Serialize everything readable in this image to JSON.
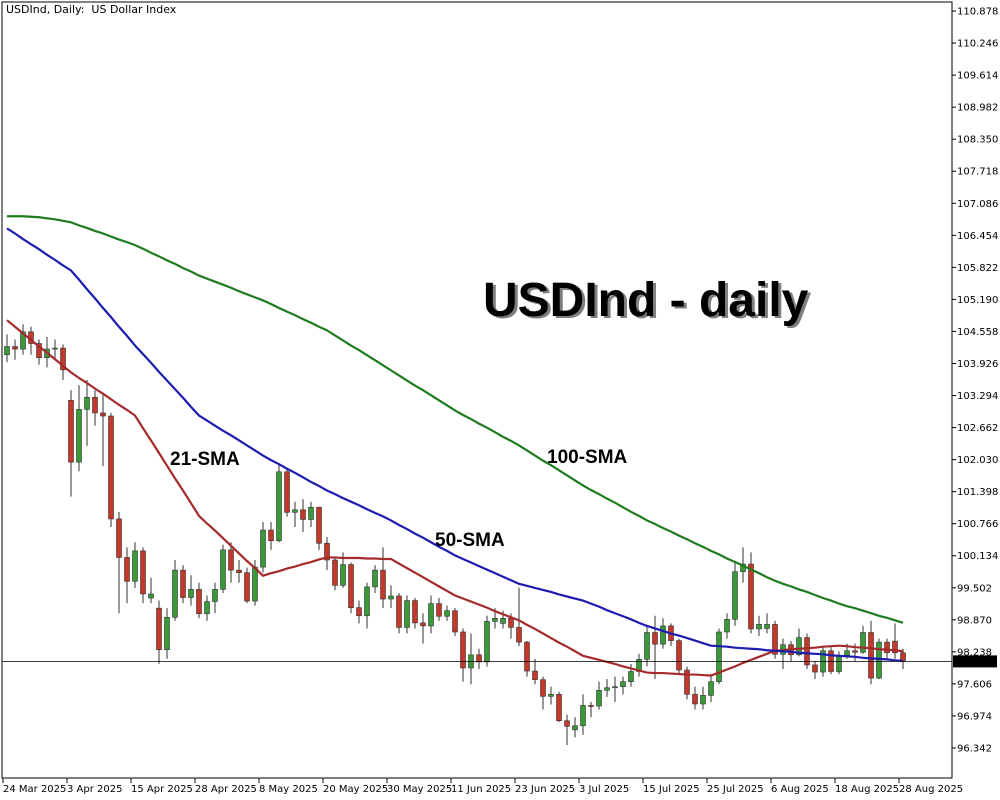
{
  "chart_data": {
    "type": "candlestick",
    "title": "USDInd, Daily:  US Dollar Index",
    "heading": "USDInd - daily",
    "categories": [
      "24 Mar 2025",
      null,
      null,
      null,
      null,
      null,
      null,
      null,
      "3 Apr 2025",
      null,
      null,
      null,
      null,
      null,
      null,
      null,
      "15 Apr 2025",
      null,
      null,
      null,
      null,
      null,
      null,
      null,
      "28 Apr 2025",
      null,
      null,
      null,
      null,
      null,
      null,
      null,
      "8 May 2025",
      null,
      null,
      null,
      null,
      null,
      null,
      null,
      "20 May 2025",
      null,
      null,
      null,
      null,
      null,
      null,
      null,
      "30 May 2025",
      null,
      null,
      null,
      null,
      null,
      null,
      null,
      "11 Jun 2025",
      null,
      null,
      null,
      null,
      null,
      null,
      null,
      "23 Jun 2025",
      null,
      null,
      null,
      null,
      null,
      null,
      null,
      "3 Jul 2025",
      null,
      null,
      null,
      null,
      null,
      null,
      null,
      "15 Jul 2025",
      null,
      null,
      null,
      null,
      null,
      null,
      null,
      "25 Jul 2025",
      null,
      null,
      null,
      null,
      null,
      null,
      null,
      "6 Aug 2025",
      null,
      null,
      null,
      null,
      null,
      null,
      null,
      "18 Aug 2025",
      null,
      null,
      null,
      null,
      null,
      null,
      null,
      "28 Aug 2025"
    ],
    "open": [
      104.1,
      104.26,
      104.21,
      104.55,
      104.32,
      104.04,
      104.21,
      104.23,
      103.2,
      101.98,
      103.02,
      103.26,
      102.95,
      102.89,
      100.86,
      100.1,
      99.63,
      100.23,
      99.3,
      99.1,
      98.28,
      98.92,
      99.85,
      99.31,
      99.47,
      98.99,
      99.23,
      99.47,
      100.25,
      99.85,
      99.8,
      99.24,
      99.91,
      100.64,
      100.43,
      101.79,
      100.99,
      101.04,
      100.85,
      101.09,
      100.38,
      100.05,
      99.55,
      99.96,
      99.11,
      98.95,
      99.52,
      99.85,
      99.28,
      99.34,
      98.72,
      99.25,
      98.81,
      98.75,
      99.19,
      98.94,
      99.05,
      98.63,
      97.92,
      98.18,
      98.04,
      98.84,
      98.8,
      98.9,
      98.72,
      98.43,
      97.86,
      97.69,
      97.36,
      97.4,
      96.88,
      96.7,
      96.78,
      97.18,
      97.17,
      97.48,
      97.53,
      97.55,
      97.65,
      97.85,
      98.09,
      98.62,
      98.39,
      98.75,
      98.46,
      97.88,
      97.4,
      97.21,
      97.38,
      97.65,
      98.63,
      98.88,
      99.82,
      99.97,
      98.69,
      98.7,
      98.78,
      98.19,
      98.38,
      98.18,
      98.52,
      97.98,
      97.84,
      98.26,
      97.85,
      98.17,
      98.26,
      98.23,
      98.62,
      97.72,
      98.43,
      98.45,
      98.22
    ],
    "high": [
      104.5,
      104.4,
      104.7,
      104.65,
      104.4,
      104.45,
      104.4,
      104.3,
      103.4,
      103.5,
      103.6,
      103.4,
      103.3,
      102.95,
      101.0,
      100.3,
      100.4,
      100.3,
      99.7,
      99.25,
      99.1,
      100.05,
      99.95,
      99.75,
      99.6,
      99.35,
      99.6,
      100.35,
      100.4,
      100.05,
      99.9,
      100.05,
      100.8,
      100.8,
      101.95,
      101.85,
      101.2,
      101.25,
      101.2,
      101.1,
      100.5,
      100.1,
      100.2,
      100.0,
      99.25,
      99.6,
      99.95,
      100.3,
      99.55,
      99.4,
      99.35,
      99.3,
      99.0,
      99.35,
      99.3,
      99.15,
      99.1,
      98.7,
      98.6,
      98.3,
      98.95,
      99.1,
      99.05,
      99.0,
      99.5,
      98.45,
      98.1,
      97.75,
      97.55,
      97.45,
      97.0,
      96.95,
      97.4,
      97.25,
      97.65,
      97.7,
      97.75,
      97.75,
      98.0,
      98.2,
      98.75,
      98.95,
      98.9,
      98.8,
      98.5,
      97.95,
      97.55,
      97.55,
      97.8,
      98.7,
      99.0,
      100.0,
      100.3,
      100.2,
      98.95,
      99.0,
      98.85,
      98.5,
      98.45,
      98.7,
      98.6,
      98.05,
      98.35,
      98.35,
      98.25,
      98.4,
      98.4,
      98.75,
      98.85,
      98.5,
      98.5,
      98.8,
      98.3
    ],
    "low": [
      103.95,
      104.0,
      104.1,
      104.1,
      103.9,
      103.85,
      104.0,
      103.6,
      101.3,
      101.8,
      102.3,
      102.7,
      101.9,
      100.7,
      99.0,
      99.2,
      99.5,
      99.2,
      99.2,
      98.0,
      98.1,
      98.85,
      99.2,
      99.15,
      98.9,
      98.85,
      99.0,
      99.4,
      99.6,
      99.6,
      99.2,
      99.15,
      99.8,
      100.25,
      100.4,
      100.9,
      100.7,
      100.6,
      100.7,
      100.25,
      99.85,
      99.45,
      99.5,
      99.0,
      98.8,
      98.7,
      99.4,
      99.1,
      99.1,
      98.6,
      98.6,
      98.7,
      98.4,
      98.6,
      98.85,
      98.85,
      98.55,
      97.65,
      97.6,
      97.9,
      97.95,
      98.7,
      98.7,
      98.5,
      98.35,
      97.75,
      97.6,
      97.1,
      97.2,
      96.85,
      96.4,
      96.55,
      96.6,
      96.95,
      97.1,
      97.35,
      97.25,
      97.4,
      97.55,
      97.75,
      97.95,
      97.7,
      98.3,
      98.35,
      97.8,
      97.3,
      97.1,
      97.1,
      97.25,
      97.6,
      98.5,
      98.75,
      99.6,
      98.6,
      98.55,
      98.6,
      98.1,
      97.9,
      98.05,
      98.15,
      97.9,
      97.7,
      97.75,
      97.8,
      97.8,
      98.1,
      98.05,
      98.2,
      97.6,
      97.7,
      98.1,
      98.1,
      97.9
    ],
    "close": [
      104.26,
      104.21,
      104.55,
      104.32,
      104.04,
      104.21,
      104.23,
      103.8,
      101.98,
      103.02,
      103.26,
      102.95,
      102.89,
      100.86,
      100.1,
      99.63,
      100.23,
      99.38,
      99.38,
      98.28,
      98.92,
      99.85,
      99.31,
      99.47,
      98.99,
      99.23,
      99.47,
      100.25,
      99.85,
      99.8,
      99.24,
      99.91,
      100.64,
      100.43,
      101.79,
      100.99,
      101.04,
      100.85,
      101.09,
      100.38,
      100.05,
      99.55,
      99.96,
      99.11,
      98.95,
      99.52,
      99.85,
      99.28,
      99.34,
      98.72,
      99.25,
      98.81,
      98.75,
      99.19,
      98.94,
      99.05,
      98.63,
      97.92,
      98.18,
      98.04,
      98.84,
      98.9,
      98.9,
      98.72,
      98.43,
      97.86,
      97.69,
      97.36,
      97.4,
      96.88,
      96.77,
      96.78,
      97.18,
      97.17,
      97.48,
      97.53,
      97.55,
      97.65,
      97.85,
      98.09,
      98.62,
      98.39,
      98.75,
      98.46,
      97.88,
      97.4,
      97.21,
      97.38,
      97.65,
      98.63,
      98.88,
      99.82,
      99.97,
      98.69,
      98.78,
      98.78,
      98.19,
      98.38,
      98.18,
      98.52,
      97.98,
      97.84,
      98.26,
      97.85,
      98.17,
      98.26,
      98.23,
      98.62,
      97.72,
      98.43,
      98.22,
      98.22,
      98.05
    ],
    "up_color": "#3a9a3a",
    "down_color": "#c0392b",
    "series": [
      {
        "name": "21-SMA",
        "color": "#a52a2a",
        "values": [
          104.78,
          104.65,
          104.52,
          104.39,
          104.26,
          104.14,
          104.01,
          103.88,
          103.75,
          103.64,
          103.54,
          103.43,
          103.33,
          103.22,
          103.11,
          103.01,
          102.9,
          102.65,
          102.41,
          102.16,
          101.91,
          101.66,
          101.42,
          101.17,
          100.92,
          100.77,
          100.63,
          100.48,
          100.33,
          100.18,
          100.03,
          99.89,
          99.74,
          99.79,
          99.83,
          99.88,
          99.92,
          99.97,
          100.01,
          100.06,
          100.1,
          100.1,
          100.09,
          100.09,
          100.09,
          100.08,
          100.08,
          100.07,
          100.07,
          99.98,
          99.89,
          99.8,
          99.71,
          99.62,
          99.53,
          99.44,
          99.35,
          99.29,
          99.23,
          99.17,
          99.11,
          99.04,
          98.98,
          98.92,
          98.86,
          98.77,
          98.69,
          98.6,
          98.51,
          98.42,
          98.34,
          98.25,
          98.16,
          98.12,
          98.08,
          98.04,
          98.0,
          97.95,
          97.91,
          97.87,
          97.83,
          97.82,
          97.82,
          97.81,
          97.8,
          97.79,
          97.79,
          97.78,
          97.77,
          97.83,
          97.89,
          97.95,
          98.02,
          98.08,
          98.14,
          98.2,
          98.26,
          98.27,
          98.29,
          98.3,
          98.31,
          98.32,
          98.34,
          98.35,
          98.36,
          98.35,
          98.33,
          98.32,
          98.31,
          98.29,
          98.28,
          98.27,
          98.25
        ]
      },
      {
        "name": "50-SMA",
        "color": "#1c1cb0",
        "values": [
          106.59,
          106.49,
          106.38,
          106.28,
          106.18,
          106.07,
          105.97,
          105.86,
          105.76,
          105.58,
          105.39,
          105.21,
          105.02,
          104.84,
          104.65,
          104.47,
          104.28,
          104.11,
          103.94,
          103.76,
          103.59,
          103.42,
          103.25,
          103.07,
          102.9,
          102.8,
          102.7,
          102.6,
          102.51,
          102.41,
          102.31,
          102.21,
          102.11,
          102.02,
          101.94,
          101.85,
          101.77,
          101.68,
          101.59,
          101.51,
          101.42,
          101.35,
          101.27,
          101.2,
          101.13,
          101.05,
          100.98,
          100.91,
          100.83,
          100.74,
          100.66,
          100.57,
          100.49,
          100.4,
          100.31,
          100.23,
          100.14,
          100.07,
          100.0,
          99.93,
          99.86,
          99.79,
          99.72,
          99.65,
          99.58,
          99.54,
          99.5,
          99.46,
          99.42,
          99.37,
          99.33,
          99.29,
          99.25,
          99.19,
          99.13,
          99.06,
          99.0,
          98.94,
          98.88,
          98.81,
          98.75,
          98.7,
          98.65,
          98.6,
          98.56,
          98.51,
          98.46,
          98.41,
          98.36,
          98.35,
          98.34,
          98.32,
          98.31,
          98.3,
          98.29,
          98.27,
          98.26,
          98.25,
          98.24,
          98.22,
          98.21,
          98.2,
          98.19,
          98.17,
          98.16,
          98.15,
          98.14,
          98.12,
          98.11,
          98.1,
          98.09,
          98.07,
          98.06
        ]
      },
      {
        "name": "100-SMA",
        "color": "#1e7b1e",
        "values": [
          106.83,
          106.83,
          106.83,
          106.82,
          106.81,
          106.79,
          106.77,
          106.74,
          106.71,
          106.65,
          106.6,
          106.54,
          106.49,
          106.43,
          106.37,
          106.32,
          106.26,
          106.19,
          106.11,
          106.04,
          105.96,
          105.89,
          105.81,
          105.74,
          105.66,
          105.6,
          105.54,
          105.48,
          105.42,
          105.35,
          105.29,
          105.23,
          105.17,
          105.1,
          105.02,
          104.95,
          104.88,
          104.8,
          104.73,
          104.65,
          104.58,
          104.48,
          104.38,
          104.28,
          104.19,
          104.09,
          103.99,
          103.89,
          103.79,
          103.69,
          103.59,
          103.49,
          103.4,
          103.3,
          103.2,
          103.1,
          103.0,
          102.91,
          102.83,
          102.74,
          102.66,
          102.57,
          102.48,
          102.4,
          102.31,
          102.21,
          102.11,
          102.01,
          101.92,
          101.82,
          101.72,
          101.62,
          101.52,
          101.43,
          101.35,
          101.26,
          101.18,
          101.09,
          101.0,
          100.92,
          100.83,
          100.76,
          100.68,
          100.61,
          100.53,
          100.46,
          100.38,
          100.31,
          100.23,
          100.16,
          100.08,
          100.01,
          99.94,
          99.86,
          99.79,
          99.71,
          99.64,
          99.58,
          99.53,
          99.47,
          99.42,
          99.36,
          99.3,
          99.25,
          99.19,
          99.14,
          99.1,
          99.05,
          99.0,
          98.95,
          98.91,
          98.86,
          98.81
        ]
      }
    ],
    "current_price": {
      "value": 98.05,
      "label": "98.050"
    },
    "ylim": [
      95.75,
      111.056
    ],
    "yticks": [
      110.878,
      110.246,
      109.614,
      108.982,
      {
        "value": 108.35,
        "label": "108.350"
      },
      107.718,
      107.086,
      106.454,
      105.822,
      {
        "value": 105.19,
        "label": "105.190"
      },
      104.558,
      103.926,
      103.294,
      102.662,
      {
        "value": 102.03,
        "label": "102.030"
      },
      101.398,
      100.766,
      100.134,
      99.502,
      {
        "value": 98.87,
        "label": "98.870"
      },
      98.238,
      97.606,
      96.974,
      96.342
    ]
  }
}
